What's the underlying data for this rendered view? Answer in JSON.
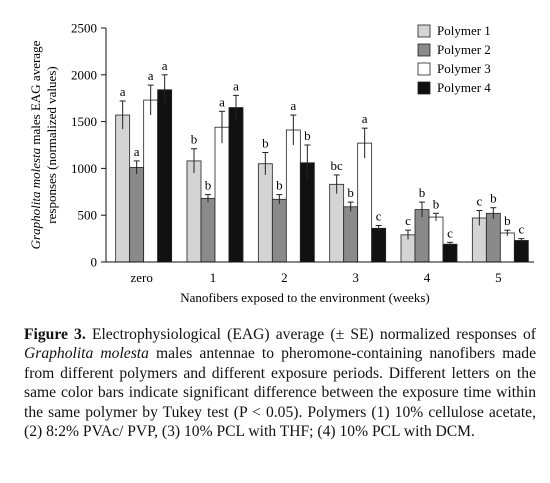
{
  "chart_data": {
    "type": "bar",
    "categories": [
      "zero",
      "1",
      "2",
      "3",
      "4",
      "5"
    ],
    "xlabel": "Nanofibers exposed to the environment (weeks)",
    "ylabel_italic": "Grapholita molesta",
    "ylabel_rest": " males EAG average",
    "ylabel_line2": "responses (normalized values)",
    "ylim": [
      0,
      2500
    ],
    "yticks": [
      "0",
      "500",
      "1000",
      "1500",
      "2000",
      "2500"
    ],
    "legend_position": "top-right",
    "grid": false,
    "series": [
      {
        "name": "Polymer 1",
        "color": "#d4d4d4",
        "values": [
          1570,
          1080,
          1050,
          830,
          290,
          470
        ],
        "errors": [
          150,
          130,
          120,
          100,
          50,
          80
        ],
        "letters": [
          "a",
          "b",
          "b",
          "bc",
          "c",
          "c"
        ]
      },
      {
        "name": "Polymer 2",
        "color": "#8a8a8a",
        "values": [
          1010,
          680,
          670,
          590,
          560,
          520
        ],
        "errors": [
          70,
          40,
          50,
          50,
          80,
          60
        ],
        "letters": [
          "a",
          "b",
          "b",
          "b",
          "b",
          "b"
        ]
      },
      {
        "name": "Polymer 3",
        "color": "#ffffff",
        "values": [
          1730,
          1440,
          1410,
          1270,
          480,
          310
        ],
        "errors": [
          160,
          170,
          160,
          160,
          40,
          30
        ],
        "letters": [
          "a",
          "a",
          "a",
          "a",
          "b",
          "b"
        ]
      },
      {
        "name": "Polymer 4",
        "color": "#111111",
        "values": [
          1840,
          1650,
          1060,
          360,
          190,
          230
        ],
        "errors": [
          160,
          130,
          190,
          30,
          20,
          20
        ],
        "letters": [
          "a",
          "a",
          "b",
          "c",
          "c",
          "c"
        ]
      }
    ]
  },
  "caption": {
    "label": "Figure 3.",
    "text1": " Electrophysiological (EAG) average (± SE) normalized responses of ",
    "species": "Grapholita molesta",
    "text2": " males antennae to pheromone-containing nanofibers made from different polymers and different exposure periods. Different letters on the same color bars indicate significant difference between the exposure time within the same polymer by Tukey test (P < 0.05). Polymers (1) 10% cellulose acetate, (2) 8:2% PVAc/ PVP, (3) 10% PCL with THF; (4) 10% PCL with DCM."
  }
}
